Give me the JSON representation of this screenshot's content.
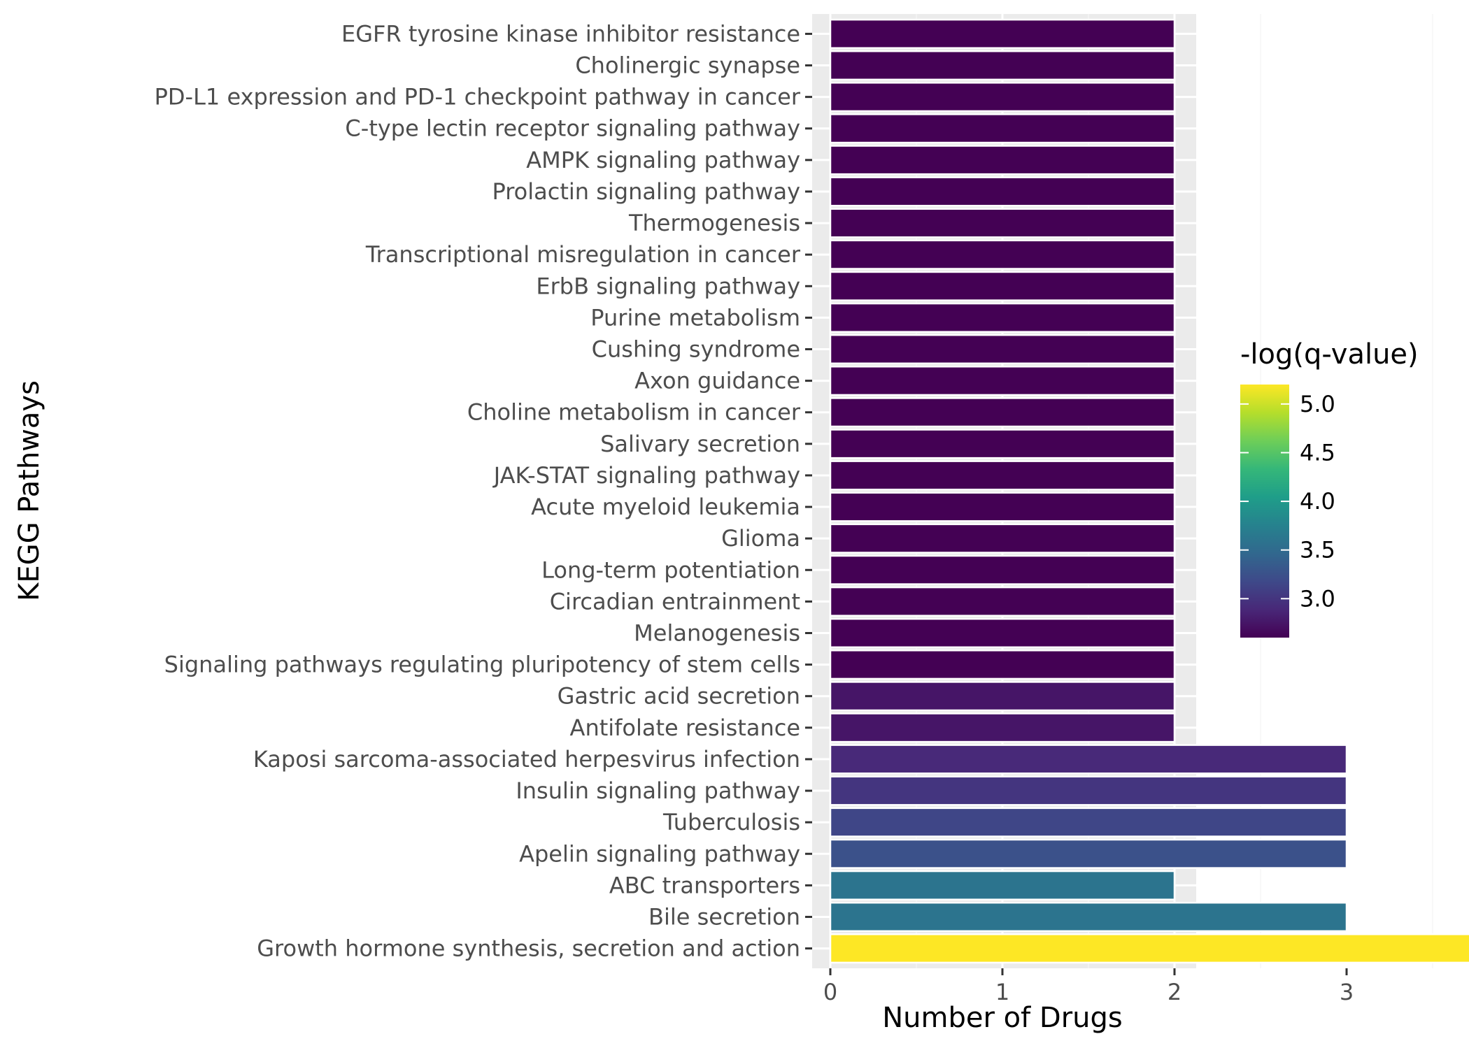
{
  "chart_data": {
    "type": "bar",
    "orientation": "horizontal",
    "xlabel": "Number of Drugs",
    "ylabel": "KEGG Pathways",
    "xlim": [
      0,
      4.2
    ],
    "xticks": [
      0,
      1,
      2,
      3,
      4
    ],
    "grid": true,
    "legend_position": "right",
    "categories": [
      "EGFR tyrosine kinase inhibitor resistance",
      "Cholinergic synapse",
      "PD-L1 expression and PD-1 checkpoint pathway in cancer",
      "C-type lectin receptor signaling pathway",
      "AMPK signaling pathway",
      "Prolactin signaling pathway",
      "Thermogenesis",
      "Transcriptional misregulation in cancer",
      "ErbB signaling pathway",
      "Purine metabolism",
      "Cushing syndrome",
      "Axon guidance",
      "Choline metabolism in cancer",
      "Salivary secretion",
      "JAK-STAT signaling pathway",
      "Acute myeloid leukemia",
      "Glioma",
      "Long-term potentiation",
      "Circadian entrainment",
      "Melanogenesis",
      "Signaling pathways regulating pluripotency of stem cells",
      "Gastric acid secretion",
      "Antifolate resistance",
      "Kaposi sarcoma-associated herpesvirus infection",
      "Insulin signaling pathway",
      "Tuberculosis",
      "Apelin signaling pathway",
      "ABC transporters",
      "Bile secretion",
      "Growth hormone synthesis, secretion and action"
    ],
    "values": [
      2,
      2,
      2,
      2,
      2,
      2,
      2,
      2,
      2,
      2,
      2,
      2,
      2,
      2,
      2,
      2,
      2,
      2,
      2,
      2,
      2,
      2,
      2,
      3,
      3,
      3,
      3,
      2,
      3,
      4
    ],
    "color_values": [
      2.6,
      2.6,
      2.6,
      2.6,
      2.6,
      2.6,
      2.6,
      2.6,
      2.6,
      2.6,
      2.6,
      2.6,
      2.6,
      2.6,
      2.6,
      2.6,
      2.6,
      2.6,
      2.6,
      2.6,
      2.6,
      2.75,
      2.75,
      2.9,
      3.0,
      3.15,
      3.25,
      3.6,
      3.6,
      5.2
    ],
    "colorbar": {
      "title": "-log(q-value)",
      "range": [
        2.6,
        5.2
      ],
      "ticks": [
        5.0,
        4.5,
        4.0,
        3.5,
        3.0
      ],
      "tick_labels": [
        "5.0",
        "4.5",
        "4.0",
        "3.5",
        "3.0"
      ],
      "palette": "viridis"
    }
  },
  "colors": {
    "panel_background": "#ebebeb",
    "grid_major": "#ffffff",
    "grid_minor": "#f5f5f5",
    "bar_outline": "#ffffff",
    "tick_mark": "#333333"
  }
}
